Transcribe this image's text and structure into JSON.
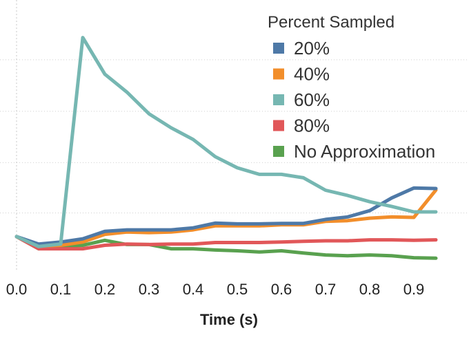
{
  "chart_data": {
    "type": "line",
    "title": "",
    "xlabel": "Time (s)",
    "ylabel": "",
    "x": [
      0.0,
      0.05,
      0.1,
      0.15,
      0.2,
      0.25,
      0.3,
      0.35,
      0.4,
      0.45,
      0.5,
      0.55,
      0.6,
      0.65,
      0.7,
      0.75,
      0.8,
      0.85,
      0.9,
      0.95
    ],
    "x_ticks": [
      "0.0",
      "0.1",
      "0.2",
      "0.3",
      "0.4",
      "0.5",
      "0.6",
      "0.7",
      "0.8",
      "0.9"
    ],
    "xlim": [
      0.0,
      1.0
    ],
    "ylim": [
      0,
      100
    ],
    "y_grid_values": [
      22.8,
      43.0,
      63.6,
      84.3
    ],
    "grid": true,
    "legend_title": "Percent Sampled",
    "legend_position": "top-right",
    "series": [
      {
        "name": "20%",
        "color": "#4e79a7",
        "values": [
          13.3,
          10.3,
          11.1,
          12.4,
          15.4,
          16.0,
          16.0,
          16.0,
          16.8,
          18.7,
          18.4,
          18.4,
          18.6,
          18.6,
          20.2,
          21.2,
          23.7,
          28.8,
          32.8,
          32.6
        ]
      },
      {
        "name": "40%",
        "color": "#f28e2b",
        "values": [
          13.3,
          9.5,
          9.8,
          11.1,
          14.2,
          15.1,
          14.9,
          15.1,
          16.0,
          17.6,
          17.6,
          17.6,
          18.0,
          18.0,
          19.4,
          19.7,
          20.7,
          21.2,
          21.0,
          32.0
        ]
      },
      {
        "name": "60%",
        "color": "#76b7b2",
        "values": [
          13.3,
          9.3,
          10.3,
          93.2,
          78.5,
          71.3,
          62.6,
          57.0,
          52.3,
          45.4,
          40.9,
          38.3,
          38.3,
          36.9,
          31.9,
          29.8,
          27.3,
          25.4,
          23.2,
          23.2
        ]
      },
      {
        "name": "80%",
        "color": "#e15759",
        "values": [
          13.3,
          8.4,
          8.4,
          8.4,
          9.8,
          10.3,
          10.1,
          10.3,
          10.3,
          10.9,
          10.9,
          10.9,
          11.1,
          11.4,
          11.6,
          11.6,
          12.0,
          12.0,
          11.8,
          12.0
        ]
      },
      {
        "name": "No Approximation",
        "color": "#59a14f",
        "values": [
          13.3,
          8.4,
          9.3,
          9.8,
          11.8,
          10.1,
          10.1,
          8.4,
          8.4,
          7.9,
          7.6,
          7.1,
          7.6,
          6.7,
          5.9,
          5.6,
          5.9,
          5.6,
          4.8,
          4.6
        ]
      }
    ]
  }
}
